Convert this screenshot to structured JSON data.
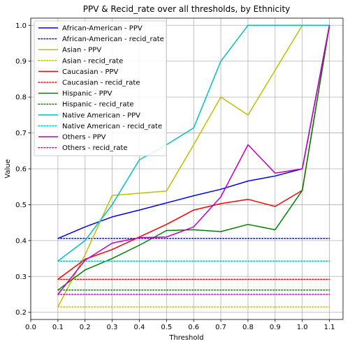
{
  "chart_data": {
    "type": "line",
    "title": "PPV & Recid_rate over all thresholds, by Ethnicity",
    "xlabel": "Threshold",
    "ylabel": "Value",
    "xlim": [
      0.0,
      1.15
    ],
    "ylim": [
      0.18,
      1.02
    ],
    "xticks": [
      0.0,
      0.1,
      0.2,
      0.3,
      0.4,
      0.5,
      0.6,
      0.7,
      0.8,
      0.9,
      1.0,
      1.1
    ],
    "yticks": [
      0.2,
      0.3,
      0.4,
      0.5,
      0.6,
      0.7,
      0.8,
      0.9,
      1.0
    ],
    "grid": true,
    "legend_position": "upper-left",
    "x": [
      0.1,
      0.2,
      0.3,
      0.4,
      0.5,
      0.6,
      0.7,
      0.8,
      0.9,
      1.0,
      1.1
    ],
    "series": [
      {
        "name": "African-American - PPV",
        "style": "solid",
        "color": "#0000ff",
        "values": [
          0.406,
          0.438,
          0.466,
          0.485,
          0.505,
          0.525,
          0.543,
          0.566,
          0.58,
          0.6,
          1.0
        ]
      },
      {
        "name": "African-American - recid_rate",
        "style": "dotted",
        "color": "#0000ff",
        "values": [
          0.406,
          0.406,
          0.406,
          0.406,
          0.406,
          0.406,
          0.406,
          0.406,
          0.406,
          0.406,
          0.406
        ]
      },
      {
        "name": "Asian - PPV",
        "style": "solid",
        "color": "#bfbf00",
        "values": [
          0.215,
          0.36,
          0.526,
          0.532,
          0.538,
          0.667,
          0.8,
          0.75,
          0.875,
          1.0,
          1.0
        ]
      },
      {
        "name": "Asian - recid_rate",
        "style": "dotted",
        "color": "#bfbf00",
        "values": [
          0.215,
          0.215,
          0.215,
          0.215,
          0.215,
          0.215,
          0.215,
          0.215,
          0.215,
          0.215,
          0.215
        ]
      },
      {
        "name": "Caucasian - PPV",
        "style": "solid",
        "color": "#ff0000",
        "values": [
          0.292,
          0.348,
          0.375,
          0.41,
          0.445,
          0.485,
          0.503,
          0.515,
          0.495,
          0.54,
          1.0
        ]
      },
      {
        "name": "Caucasian - recid_rate",
        "style": "dotted",
        "color": "#ff0000",
        "values": [
          0.292,
          0.292,
          0.292,
          0.292,
          0.292,
          0.292,
          0.292,
          0.292,
          0.292,
          0.292,
          0.292
        ]
      },
      {
        "name": "Hispanic - PPV",
        "style": "solid",
        "color": "#008000",
        "values": [
          0.262,
          0.318,
          0.35,
          0.387,
          0.428,
          0.43,
          0.425,
          0.445,
          0.43,
          0.54,
          1.0
        ]
      },
      {
        "name": "Hispanic - recid_rate",
        "style": "dotted",
        "color": "#008000",
        "values": [
          0.262,
          0.262,
          0.262,
          0.262,
          0.262,
          0.262,
          0.262,
          0.262,
          0.262,
          0.262,
          0.262
        ]
      },
      {
        "name": "Native American - PPV",
        "style": "solid",
        "color": "#00bfbf",
        "values": [
          0.343,
          0.4,
          0.5,
          0.625,
          0.667,
          0.714,
          0.9,
          1.0,
          1.0,
          1.0,
          1.0
        ]
      },
      {
        "name": "Native American - recid_rate",
        "style": "dotted",
        "color": "#00bfbf",
        "values": [
          0.343,
          0.343,
          0.343,
          0.343,
          0.343,
          0.343,
          0.343,
          0.343,
          0.343,
          0.343,
          0.343
        ]
      },
      {
        "name": "Others - PPV",
        "style": "solid",
        "color": "#bf00bf",
        "values": [
          0.25,
          0.345,
          0.393,
          0.408,
          0.41,
          0.438,
          0.522,
          0.667,
          0.588,
          0.6,
          1.0
        ]
      },
      {
        "name": "Others - recid_rate",
        "style": "dotted",
        "color": "#bf00bf",
        "values": [
          0.25,
          0.25,
          0.25,
          0.25,
          0.25,
          0.25,
          0.25,
          0.25,
          0.25,
          0.25,
          0.25
        ]
      }
    ]
  }
}
